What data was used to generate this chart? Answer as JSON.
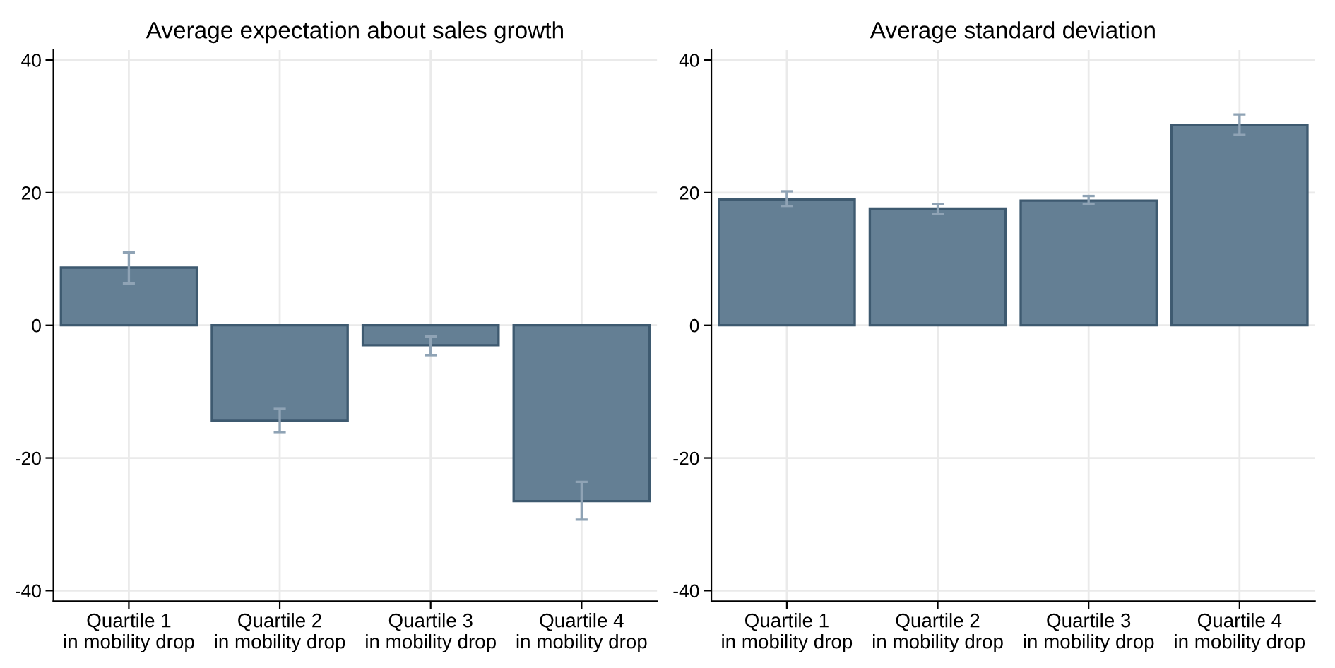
{
  "chart_data": [
    {
      "type": "bar",
      "title": "Average expectation about sales growth",
      "categories": [
        "Quartile 1\nin mobility drop",
        "Quartile 2\nin mobility drop",
        "Quartile 3\nin mobility drop",
        "Quartile 4\nin mobility drop"
      ],
      "values": [
        8.7,
        -14.4,
        -3.0,
        -26.5
      ],
      "errors": [
        [
          6.3,
          11.0
        ],
        [
          -16.1,
          -12.6
        ],
        [
          -4.5,
          -1.7
        ],
        [
          -29.3,
          -23.6
        ]
      ],
      "color": "#647f94",
      "ylim": [
        -41.6,
        41.5
      ],
      "yticks": [
        -40,
        -20,
        0,
        20,
        40
      ],
      "grid": true
    },
    {
      "type": "bar",
      "title": "Average standard deviation",
      "categories": [
        "Quartile 1\nin mobility drop",
        "Quartile 2\nin mobility drop",
        "Quartile 3\nin mobility drop",
        "Quartile 4\nin mobility drop"
      ],
      "values": [
        19.0,
        17.6,
        18.8,
        30.2
      ],
      "errors": [
        [
          18.0,
          20.2
        ],
        [
          16.8,
          18.3
        ],
        [
          18.3,
          19.5
        ],
        [
          28.7,
          31.8
        ]
      ],
      "color": "#647f94",
      "ylim": [
        -41.6,
        41.5
      ],
      "yticks": [
        -40,
        -20,
        0,
        20,
        40
      ],
      "grid": true
    }
  ]
}
